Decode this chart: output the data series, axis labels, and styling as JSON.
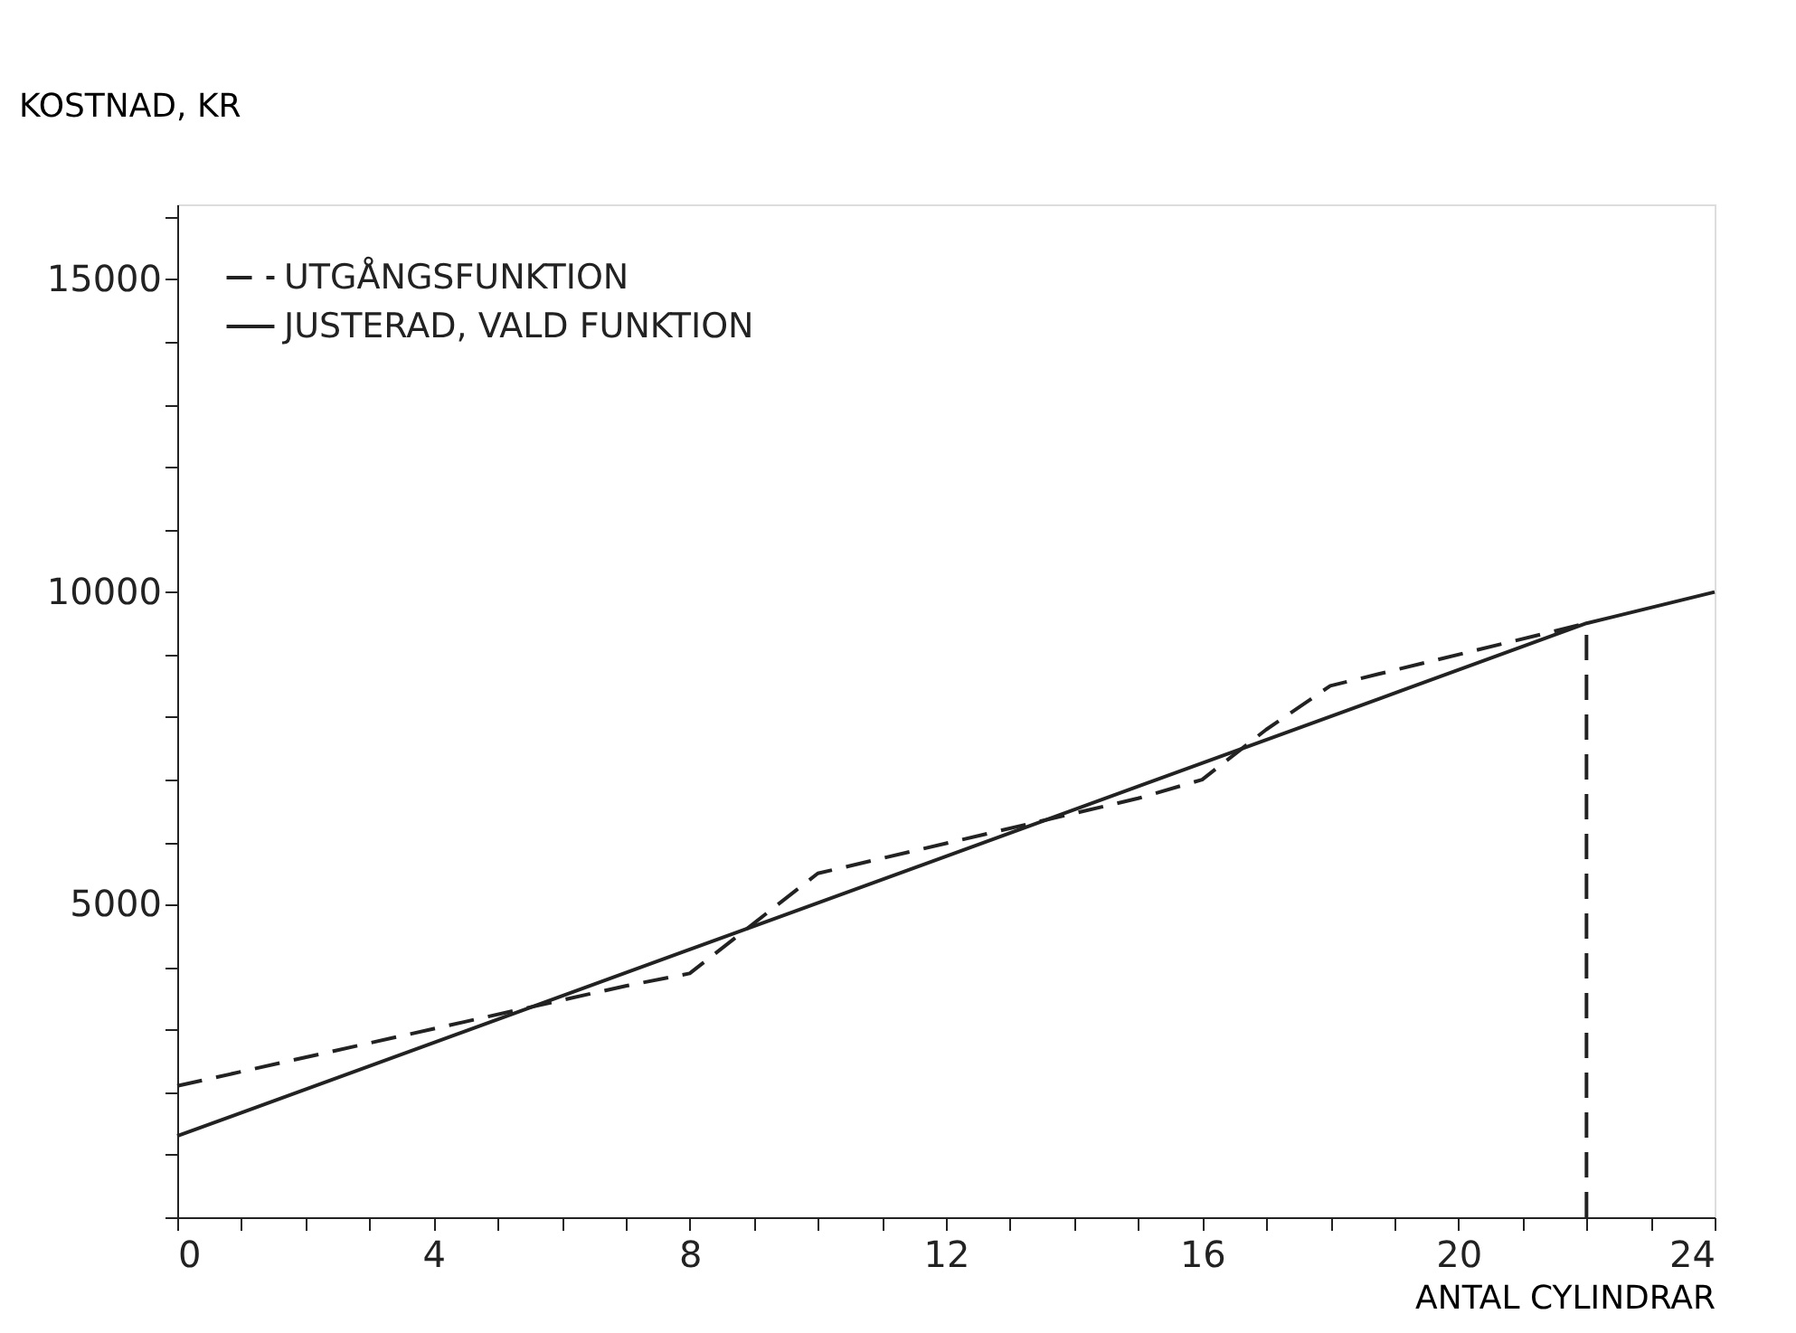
{
  "chart_data": {
    "type": "line",
    "xlabel": "ANTAL CYLINDRAR",
    "ylabel": "KOSTNAD, KR",
    "xlim": [
      0,
      24
    ],
    "ylim": [
      0,
      16200
    ],
    "xticks": [
      0,
      {
        "value": 1,
        "label": null
      },
      {
        "value": 2,
        "label": null
      },
      {
        "value": 3,
        "label": null
      },
      4,
      {
        "value": 5,
        "label": null
      },
      {
        "value": 6,
        "label": null
      },
      {
        "value": 7,
        "label": null
      },
      8,
      {
        "value": 9,
        "label": null
      },
      {
        "value": 10,
        "label": null
      },
      {
        "value": 11,
        "label": null
      },
      12,
      {
        "value": 13,
        "label": null
      },
      {
        "value": 14,
        "label": null
      },
      {
        "value": 15,
        "label": null
      },
      16,
      {
        "value": 17,
        "label": null
      },
      {
        "value": 18,
        "label": null
      },
      {
        "value": 19,
        "label": null
      },
      20,
      {
        "value": 21,
        "label": null
      },
      {
        "value": 22,
        "label": null
      },
      {
        "value": 23,
        "label": null
      },
      24
    ],
    "yticks": [
      {
        "value": 0,
        "label": null
      },
      {
        "value": 1000,
        "label": null
      },
      {
        "value": 2000,
        "label": null
      },
      {
        "value": 3000,
        "label": null
      },
      {
        "value": 4000,
        "label": null
      },
      5000,
      {
        "value": 6000,
        "label": null
      },
      {
        "value": 7000,
        "label": null
      },
      {
        "value": 8000,
        "label": null
      },
      {
        "value": 9000,
        "label": null
      },
      10000,
      {
        "value": 11000,
        "label": null
      },
      {
        "value": 12000,
        "label": null
      },
      {
        "value": 13000,
        "label": null
      },
      {
        "value": 14000,
        "label": null
      },
      15000,
      {
        "value": 16000,
        "label": null
      }
    ],
    "grid": false,
    "legend": "top left",
    "marker": "none",
    "series": [
      {
        "name": "UTGÅNGSFUNKTION",
        "color": "#222222",
        "line_style": "dashed",
        "x": [
          0,
          7,
          8,
          10,
          15,
          16,
          17,
          18,
          22
        ],
        "values": [
          2100,
          3700,
          3900,
          5500,
          6700,
          7000,
          7800,
          8500,
          9500
        ]
      },
      {
        "name": "JUSTERAD, VALD FUNKTION",
        "color": "#222222",
        "line_style": "solid",
        "x": [
          0,
          22,
          24
        ],
        "values": [
          1300,
          9500,
          10000
        ]
      },
      {
        "color": "#222222",
        "line_style": "dashed",
        "x": [
          22,
          22
        ],
        "values": [
          0,
          9500
        ]
      }
    ]
  }
}
